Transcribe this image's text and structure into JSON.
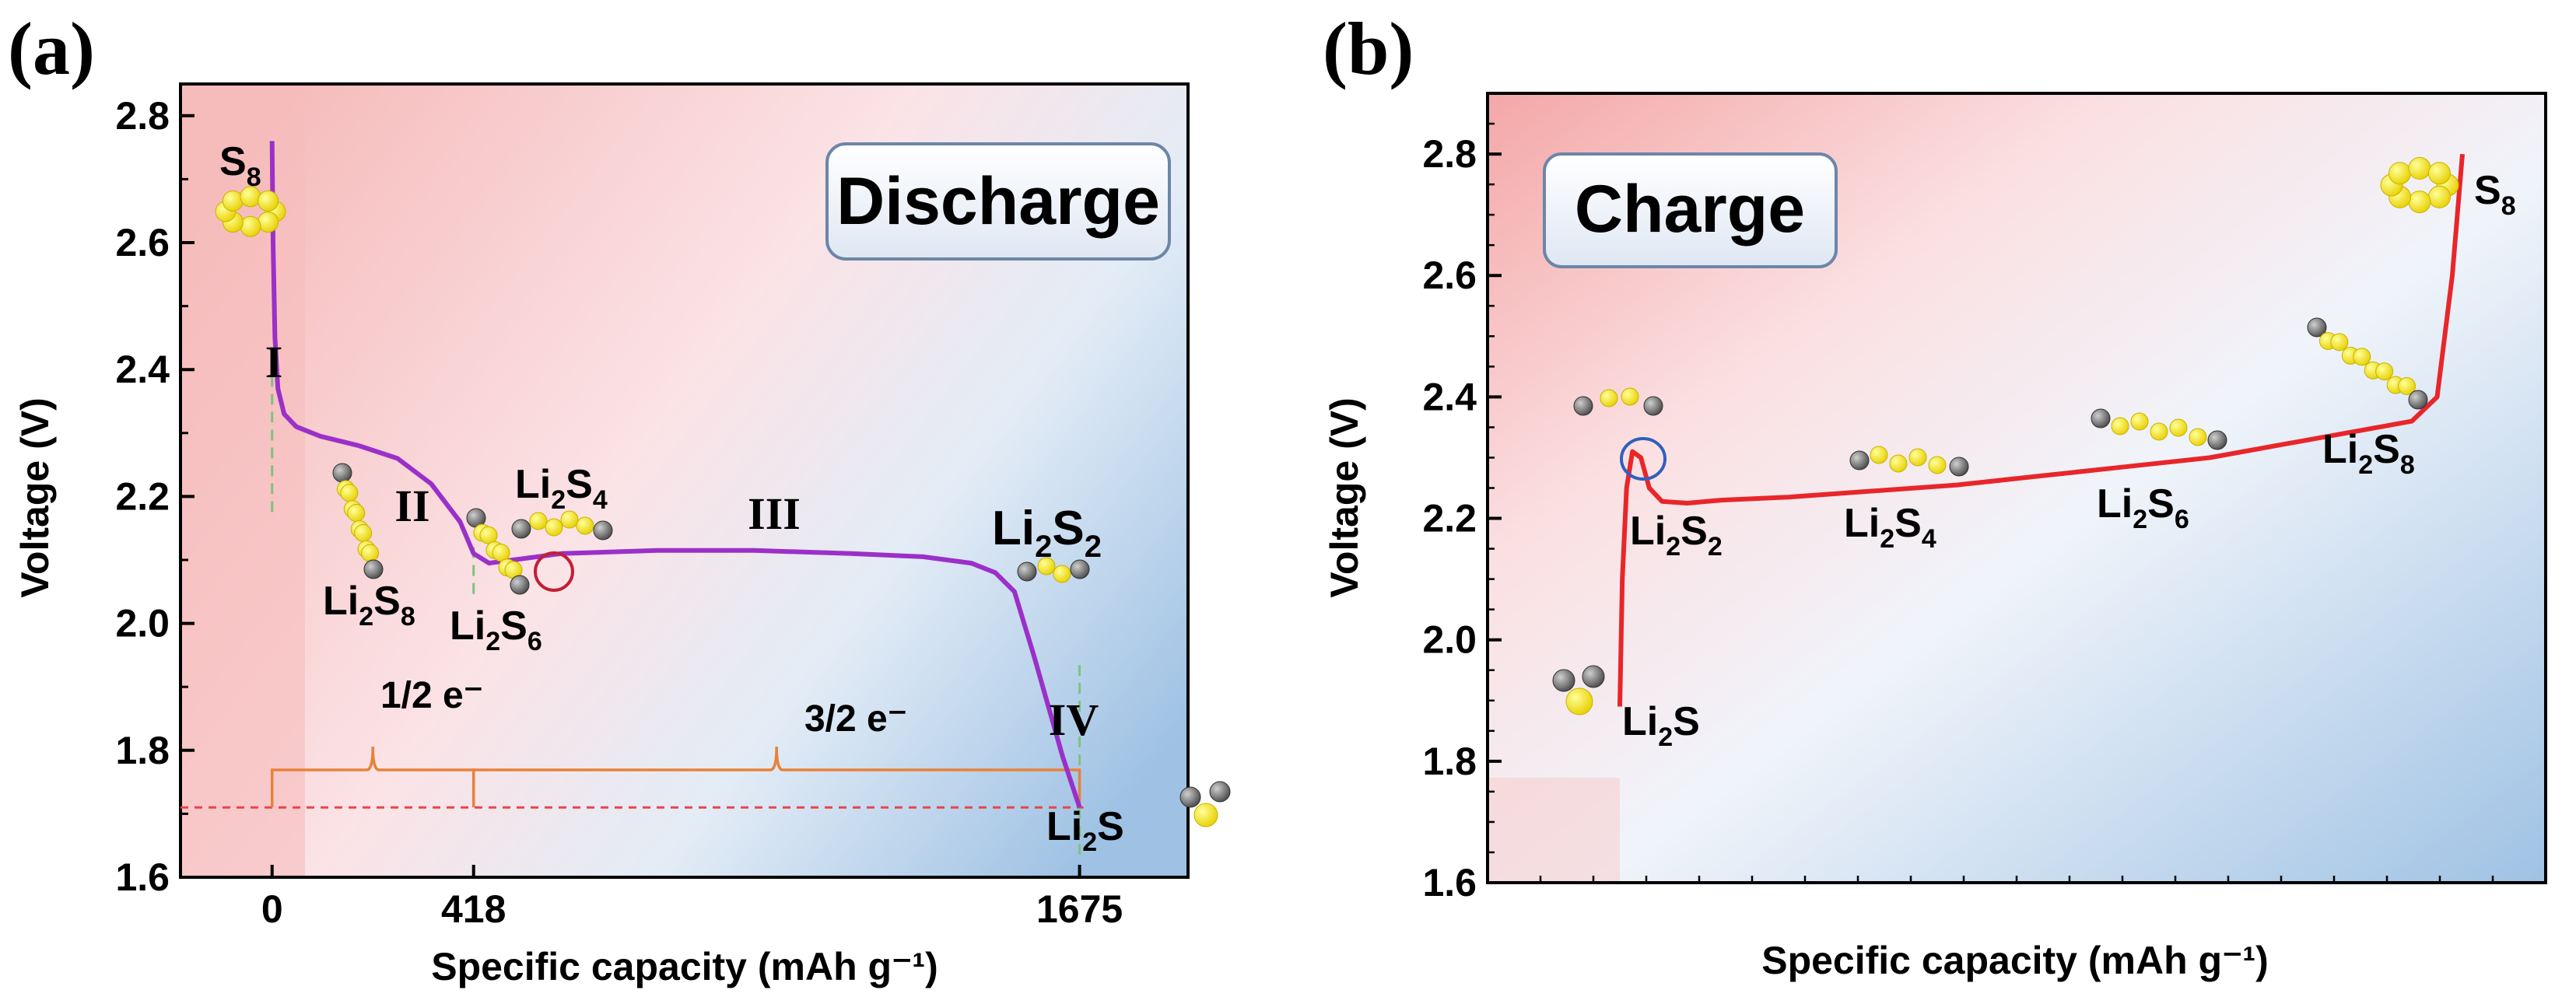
{
  "chart_data": [
    {
      "type": "line",
      "panel_label": "(a)",
      "box_label": "Discharge",
      "xlabel": "Specific capacity (mAh g⁻¹)",
      "ylabel": "Voltage (V)",
      "ylim": [
        1.6,
        2.85
      ],
      "xlim": [
        -190,
        1900
      ],
      "yticks": [
        "1.6",
        "1.8",
        "2.0",
        "2.2",
        "2.4",
        "2.6",
        "2.8"
      ],
      "xticks": [
        "0",
        "418",
        "1675"
      ],
      "series": [
        {
          "color": "#9b30c8",
          "x": [
            0,
            2,
            6,
            12,
            25,
            50,
            100,
            180,
            260,
            330,
            390,
            418,
            450,
            500,
            600,
            800,
            1000,
            1200,
            1350,
            1450,
            1500,
            1540,
            1560,
            1580,
            1610,
            1640,
            1675
          ],
          "y": [
            2.76,
            2.6,
            2.45,
            2.37,
            2.33,
            2.31,
            2.295,
            2.28,
            2.26,
            2.22,
            2.16,
            2.11,
            2.095,
            2.1,
            2.11,
            2.115,
            2.115,
            2.11,
            2.105,
            2.095,
            2.08,
            2.05,
            2.0,
            1.95,
            1.87,
            1.79,
            1.71
          ]
        }
      ],
      "regions": [
        "I",
        "II",
        "III",
        "IV"
      ],
      "species_labels": [
        "S8",
        "Li2S8",
        "Li2S6",
        "Li2S4",
        "Li2S2",
        "Li2S"
      ],
      "electron_labels": [
        "1/2 e⁻",
        "3/2 e⁻"
      ],
      "reference_line_y": 1.71
    },
    {
      "type": "line",
      "panel_label": "(b)",
      "box_label": "Charge",
      "xlabel": "Specific capacity (mAh g⁻¹)",
      "ylabel": "Voltage (V)",
      "ylim": [
        1.6,
        2.9
      ],
      "yticks": [
        "1.6",
        "1.8",
        "2.0",
        "2.2",
        "2.4",
        "2.6",
        "2.8"
      ],
      "series": [
        {
          "color": "#e8262a",
          "x": [
            0,
            0.3,
            0.8,
            1.5,
            2.5,
            3.5,
            5,
            8,
            12,
            20,
            30,
            40,
            50,
            60,
            70,
            80,
            90,
            94,
            97,
            98.8,
            100
          ],
          "y": [
            1.89,
            2.1,
            2.25,
            2.31,
            2.3,
            2.25,
            2.228,
            2.225,
            2.23,
            2.235,
            2.245,
            2.255,
            2.27,
            2.285,
            2.3,
            2.325,
            2.35,
            2.36,
            2.4,
            2.6,
            2.8
          ]
        }
      ],
      "species_labels": [
        "Li2S",
        "Li2S2",
        "Li2S4",
        "Li2S6",
        "Li2S8",
        "S8"
      ]
    }
  ]
}
